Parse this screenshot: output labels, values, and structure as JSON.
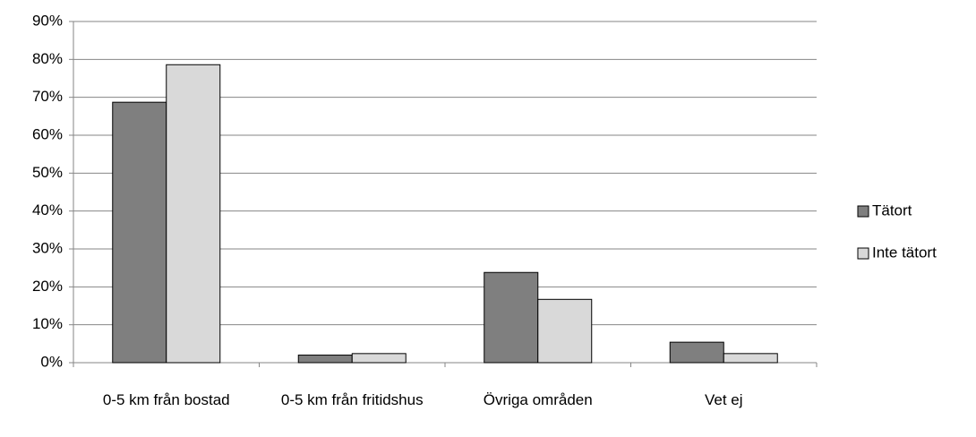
{
  "chart_data": {
    "type": "bar",
    "categories": [
      "0-5 km från bostad",
      "0-5 km från fritidshus",
      "Övriga områden",
      "Vet ej"
    ],
    "series": [
      {
        "name": "Tätort",
        "color": "#7f7f7f",
        "values": [
          68.7,
          2.0,
          23.8,
          5.4
        ]
      },
      {
        "name": "Inte tätort",
        "color": "#d9d9d9",
        "values": [
          78.6,
          2.4,
          16.7,
          2.4
        ]
      }
    ],
    "ylim": [
      0,
      90
    ],
    "yticks": [
      {
        "value": 0,
        "label": "0%"
      },
      {
        "value": 10,
        "label": "10%"
      },
      {
        "value": 20,
        "label": "20%"
      },
      {
        "value": 30,
        "label": "30%"
      },
      {
        "value": 40,
        "label": "40%"
      },
      {
        "value": 50,
        "label": "50%"
      },
      {
        "value": 60,
        "label": "60%"
      },
      {
        "value": 70,
        "label": "70%"
      },
      {
        "value": 80,
        "label": "80%"
      },
      {
        "value": 90,
        "label": "90%"
      }
    ],
    "grid": true,
    "legend": "right"
  }
}
